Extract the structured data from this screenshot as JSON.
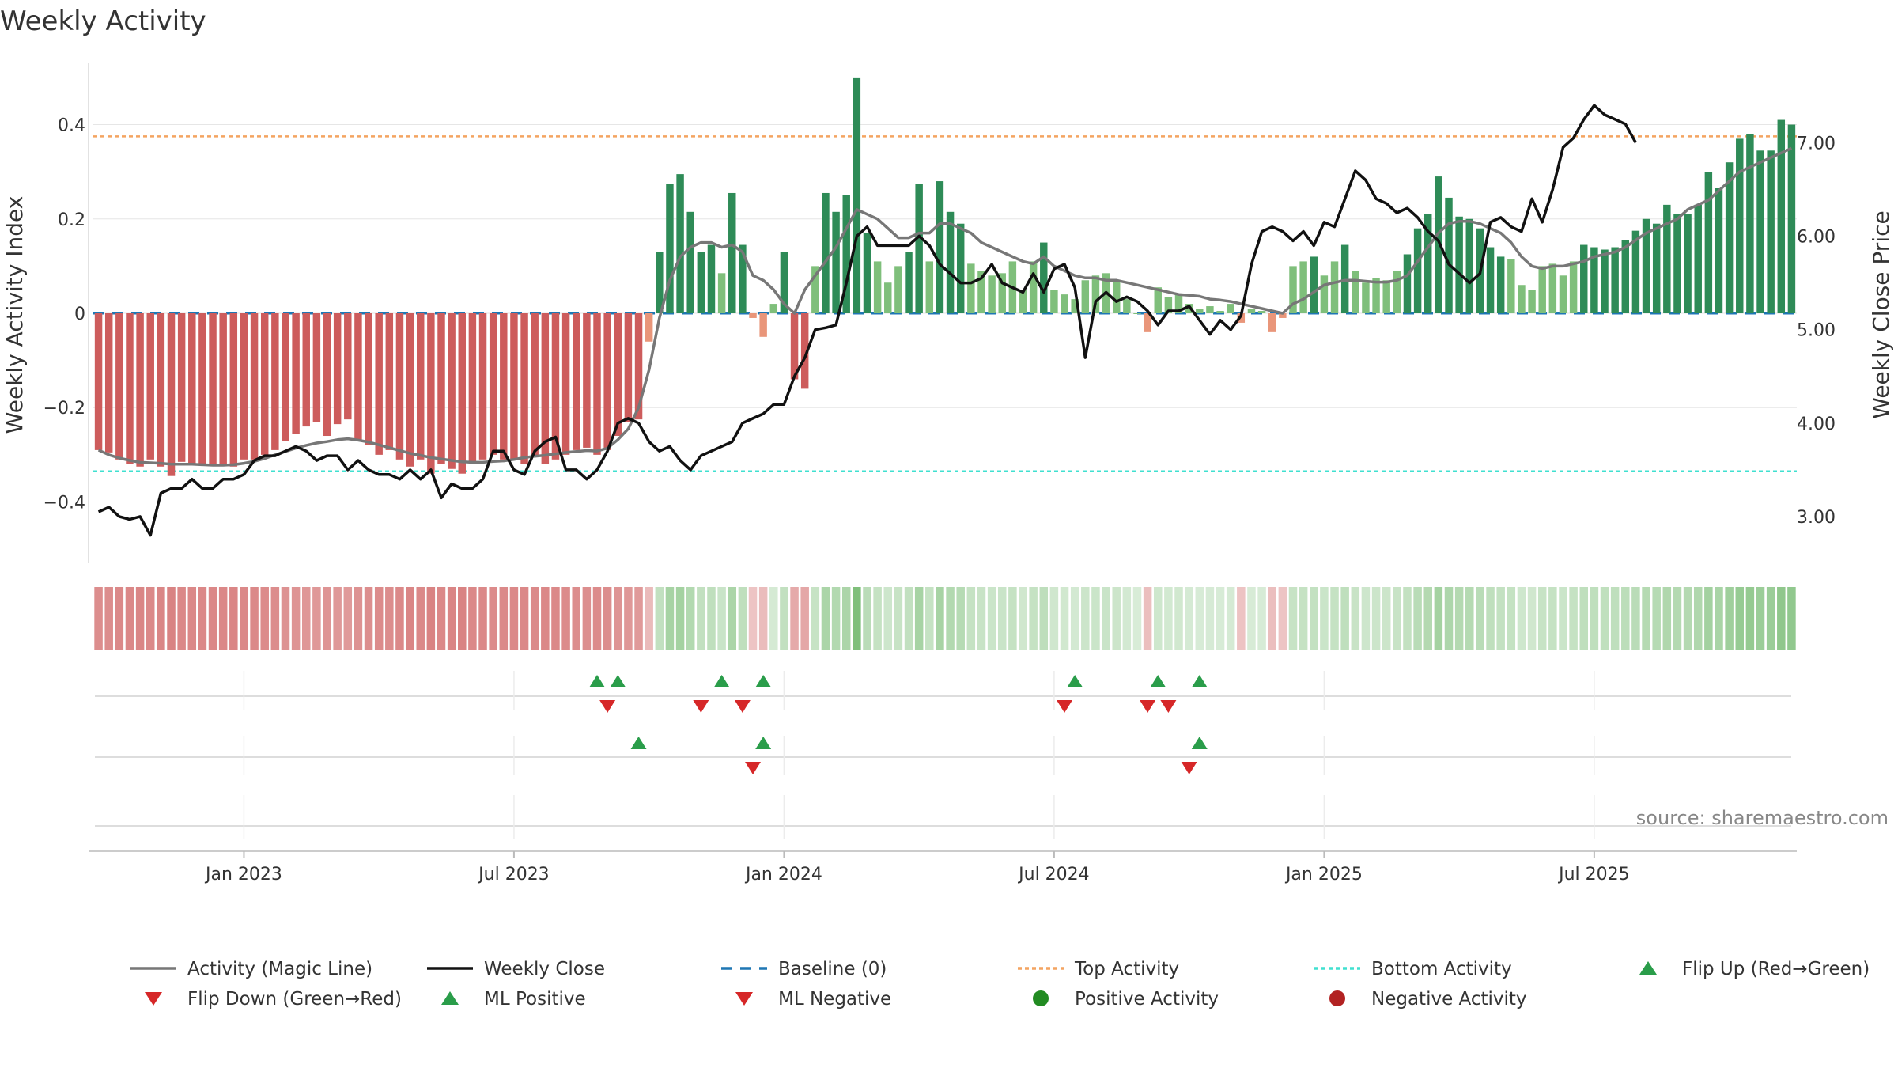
{
  "chart_data": {
    "type": "bar",
    "title": "Weekly Activity",
    "ylabel_left": "Weekly Activity Index",
    "ylabel_right": "Weekly Close Price",
    "source": "source: sharemaestro.com",
    "ylim_left": [
      -0.53,
      0.53
    ],
    "ylim_right": [
      2.5,
      7.85
    ],
    "yticks_left": [
      {
        "v": 0.4,
        "label": "0.4"
      },
      {
        "v": 0.2,
        "label": "0.2"
      },
      {
        "v": 0,
        "label": "0"
      },
      {
        "v": -0.2,
        "label": "−0.2"
      },
      {
        "v": -0.4,
        "label": "−0.4"
      }
    ],
    "yticks_right": [
      {
        "v": 7,
        "label": "7.00"
      },
      {
        "v": 6,
        "label": "6.00"
      },
      {
        "v": 5,
        "label": "5.00"
      },
      {
        "v": 4,
        "label": "4.00"
      },
      {
        "v": 3,
        "label": "3.00"
      }
    ],
    "xticks": [
      {
        "week": 14,
        "label": "Jan 2023"
      },
      {
        "week": 40,
        "label": "Jul 2023"
      },
      {
        "week": 66,
        "label": "Jan 2024"
      },
      {
        "week": 92,
        "label": "Jul 2024"
      },
      {
        "week": 118,
        "label": "Jan 2025"
      },
      {
        "week": 144,
        "label": "Jul 2025"
      }
    ],
    "top_activity": 0.375,
    "bottom_activity": -0.335,
    "baseline": 0,
    "activity": [
      -0.29,
      -0.295,
      -0.31,
      -0.32,
      -0.325,
      -0.31,
      -0.325,
      -0.345,
      -0.315,
      -0.32,
      -0.32,
      -0.32,
      -0.32,
      -0.325,
      -0.31,
      -0.31,
      -0.3,
      -0.29,
      -0.27,
      -0.255,
      -0.24,
      -0.23,
      -0.26,
      -0.235,
      -0.225,
      -0.27,
      -0.28,
      -0.3,
      -0.29,
      -0.31,
      -0.325,
      -0.31,
      -0.34,
      -0.32,
      -0.33,
      -0.34,
      -0.32,
      -0.31,
      -0.3,
      -0.31,
      -0.31,
      -0.32,
      -0.305,
      -0.32,
      -0.31,
      -0.3,
      -0.29,
      -0.285,
      -0.3,
      -0.29,
      -0.26,
      -0.23,
      -0.225,
      -0.06,
      0.13,
      0.275,
      0.295,
      0.215,
      0.13,
      0.145,
      0.085,
      0.255,
      0.145,
      -0.01,
      -0.05,
      0.02,
      0.13,
      -0.14,
      -0.16,
      0.1,
      0.255,
      0.215,
      0.25,
      0.5,
      0.17,
      0.11,
      0.065,
      0.1,
      0.13,
      0.275,
      0.11,
      0.28,
      0.215,
      0.19,
      0.105,
      0.09,
      0.08,
      0.085,
      0.11,
      0.05,
      0.11,
      0.15,
      0.05,
      0.04,
      0.03,
      0.07,
      0.08,
      0.085,
      0.07,
      0.03,
      0.0,
      -0.04,
      0.055,
      0.035,
      0.04,
      0.02,
      0.01,
      0.015,
      0.005,
      0.02,
      -0.02,
      0.01,
      0.005,
      -0.04,
      -0.01,
      0.1,
      0.11,
      0.12,
      0.08,
      0.11,
      0.145,
      0.09,
      0.065,
      0.075,
      0.07,
      0.09,
      0.125,
      0.18,
      0.21,
      0.29,
      0.245,
      0.205,
      0.2,
      0.18,
      0.14,
      0.12,
      0.115,
      0.06,
      0.05,
      0.1,
      0.105,
      0.08,
      0.11,
      0.145,
      0.14,
      0.135,
      0.14,
      0.155,
      0.175,
      0.2,
      0.19,
      0.23,
      0.21,
      0.21,
      0.23,
      0.3,
      0.265,
      0.32,
      0.37,
      0.38,
      0.345,
      0.345,
      0.41,
      0.4
    ],
    "magic_line": [
      -0.29,
      -0.3,
      -0.307,
      -0.312,
      -0.316,
      -0.317,
      -0.318,
      -0.32,
      -0.32,
      -0.32,
      -0.321,
      -0.322,
      -0.322,
      -0.321,
      -0.318,
      -0.314,
      -0.308,
      -0.3,
      -0.293,
      -0.286,
      -0.28,
      -0.275,
      -0.272,
      -0.268,
      -0.266,
      -0.269,
      -0.273,
      -0.279,
      -0.285,
      -0.291,
      -0.297,
      -0.301,
      -0.306,
      -0.309,
      -0.312,
      -0.315,
      -0.316,
      -0.316,
      -0.314,
      -0.313,
      -0.31,
      -0.306,
      -0.303,
      -0.301,
      -0.298,
      -0.295,
      -0.293,
      -0.291,
      -0.292,
      -0.286,
      -0.268,
      -0.245,
      -0.2,
      -0.12,
      -0.01,
      0.07,
      0.12,
      0.14,
      0.15,
      0.15,
      0.14,
      0.145,
      0.13,
      0.08,
      0.07,
      0.05,
      0.02,
      0.0,
      0.05,
      0.08,
      0.11,
      0.14,
      0.18,
      0.22,
      0.21,
      0.2,
      0.18,
      0.16,
      0.16,
      0.17,
      0.17,
      0.19,
      0.19,
      0.18,
      0.17,
      0.15,
      0.14,
      0.13,
      0.12,
      0.11,
      0.105,
      0.12,
      0.1,
      0.09,
      0.08,
      0.075,
      0.075,
      0.07,
      0.07,
      0.065,
      0.06,
      0.055,
      0.05,
      0.045,
      0.04,
      0.038,
      0.036,
      0.03,
      0.028,
      0.025,
      0.02,
      0.015,
      0.01,
      0.005,
      0.0,
      0.02,
      0.03,
      0.045,
      0.06,
      0.065,
      0.07,
      0.07,
      0.068,
      0.066,
      0.066,
      0.07,
      0.08,
      0.11,
      0.14,
      0.17,
      0.19,
      0.195,
      0.195,
      0.19,
      0.18,
      0.17,
      0.15,
      0.12,
      0.1,
      0.095,
      0.1,
      0.1,
      0.105,
      0.11,
      0.12,
      0.125,
      0.13,
      0.14,
      0.155,
      0.17,
      0.18,
      0.19,
      0.2,
      0.22,
      0.23,
      0.24,
      0.26,
      0.28,
      0.3,
      0.31,
      0.32,
      0.33,
      0.34,
      0.35
    ],
    "weekly_close": [
      3.05,
      3.1,
      3.0,
      2.97,
      3.0,
      2.8,
      3.25,
      3.3,
      3.3,
      3.4,
      3.3,
      3.3,
      3.4,
      3.4,
      3.45,
      3.6,
      3.65,
      3.65,
      3.7,
      3.75,
      3.7,
      3.6,
      3.65,
      3.65,
      3.5,
      3.6,
      3.5,
      3.45,
      3.45,
      3.4,
      3.5,
      3.4,
      3.5,
      3.2,
      3.35,
      3.3,
      3.3,
      3.4,
      3.7,
      3.7,
      3.5,
      3.45,
      3.7,
      3.8,
      3.85,
      3.5,
      3.5,
      3.4,
      3.5,
      3.7,
      4.0,
      4.05,
      4.0,
      3.8,
      3.7,
      3.75,
      3.6,
      3.5,
      3.65,
      3.7,
      3.75,
      3.8,
      4.0,
      4.05,
      4.1,
      4.2,
      4.2,
      4.5,
      4.7,
      5.0,
      5.02,
      5.05,
      5.5,
      6.0,
      6.1,
      5.9,
      5.9,
      5.9,
      5.9,
      6.0,
      5.9,
      5.7,
      5.6,
      5.5,
      5.5,
      5.55,
      5.7,
      5.5,
      5.45,
      5.4,
      5.6,
      5.4,
      5.65,
      5.7,
      5.45,
      4.7,
      5.3,
      5.4,
      5.3,
      5.35,
      5.3,
      5.2,
      5.05,
      5.2,
      5.2,
      5.25,
      5.1,
      4.95,
      5.1,
      5.0,
      5.15,
      5.7,
      6.05,
      6.1,
      6.05,
      5.95,
      6.05,
      5.9,
      6.15,
      6.1,
      6.4,
      6.7,
      6.6,
      6.4,
      6.35,
      6.25,
      6.3,
      6.2,
      6.05,
      5.95,
      5.7,
      5.6,
      5.5,
      5.6,
      6.15,
      6.2,
      6.1,
      6.05,
      6.4,
      6.15,
      6.5,
      6.95,
      7.05,
      7.25,
      7.4,
      7.3,
      7.25,
      7.2,
      7.0
    ],
    "markers": {
      "flip_up": [
        48,
        50,
        60,
        64,
        94,
        102,
        106
      ],
      "flip_down": [
        49,
        58,
        62,
        93,
        101,
        103
      ],
      "ml_positive": [
        52,
        64,
        106
      ],
      "ml_negative": [
        63,
        105
      ]
    },
    "colors": {
      "pos_strong": "#2e8b57",
      "pos_light": "#7fbf7b",
      "neg_strong": "#cd5c5c",
      "neg_light": "#e9967a",
      "magic_line": "#777777",
      "close": "#111111",
      "baseline": "#1f77b4",
      "top": "#f4a460",
      "bottom": "#40e0d0",
      "flip_up": "#2a9d4a",
      "flip_down": "#d62728",
      "pos_dot": "#228b22",
      "neg_dot": "#b22222"
    },
    "legend": [
      {
        "label": "Activity (Magic Line)",
        "type": "line",
        "color": "#777777",
        "dash": ""
      },
      {
        "label": "Weekly Close",
        "type": "line",
        "color": "#111111",
        "dash": ""
      },
      {
        "label": "Baseline (0)",
        "type": "line",
        "color": "#1f77b4",
        "dash": "14,10"
      },
      {
        "label": "Top Activity",
        "type": "line",
        "color": "#f4a460",
        "dash": "5,4"
      },
      {
        "label": "Bottom Activity",
        "type": "line",
        "color": "#40e0d0",
        "dash": "5,4"
      },
      {
        "label": "Flip Up (Red→Green)",
        "type": "tri-up",
        "color": "#2a9d4a"
      },
      {
        "label": "Flip Down (Green→Red)",
        "type": "tri-down",
        "color": "#d62728"
      },
      {
        "label": "ML Positive",
        "type": "tri-up",
        "color": "#2a9d4a"
      },
      {
        "label": "ML Negative",
        "type": "tri-down",
        "color": "#d62728"
      },
      {
        "label": "Positive Activity",
        "type": "dot",
        "color": "#228b22"
      },
      {
        "label": "Negative Activity",
        "type": "dot",
        "color": "#b22222"
      }
    ]
  }
}
